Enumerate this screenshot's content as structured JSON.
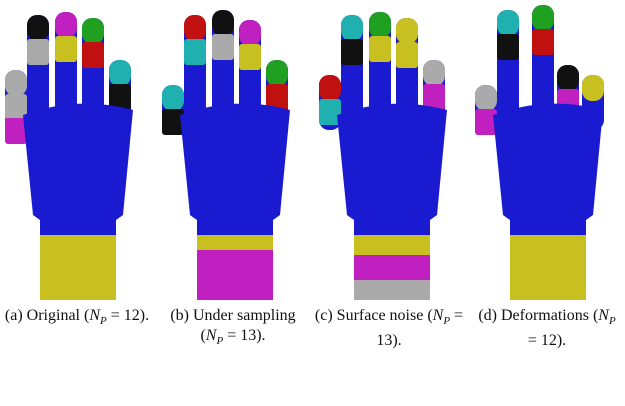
{
  "captions": [
    {
      "prefix": "(a)  Original (",
      "var": "N",
      "sub": "P",
      "suffix": " = 12)."
    },
    {
      "prefix": "(b)  Under sampling (",
      "var": "N",
      "sub": "P",
      "suffix": " = 13)."
    },
    {
      "prefix": "(c)  Surface noise (",
      "var": "N",
      "sub": "P",
      "suffix": " = 13)."
    },
    {
      "prefix": "(d)  Deformations (",
      "var": "N",
      "sub": "P",
      "suffix": " = 12)."
    }
  ]
}
